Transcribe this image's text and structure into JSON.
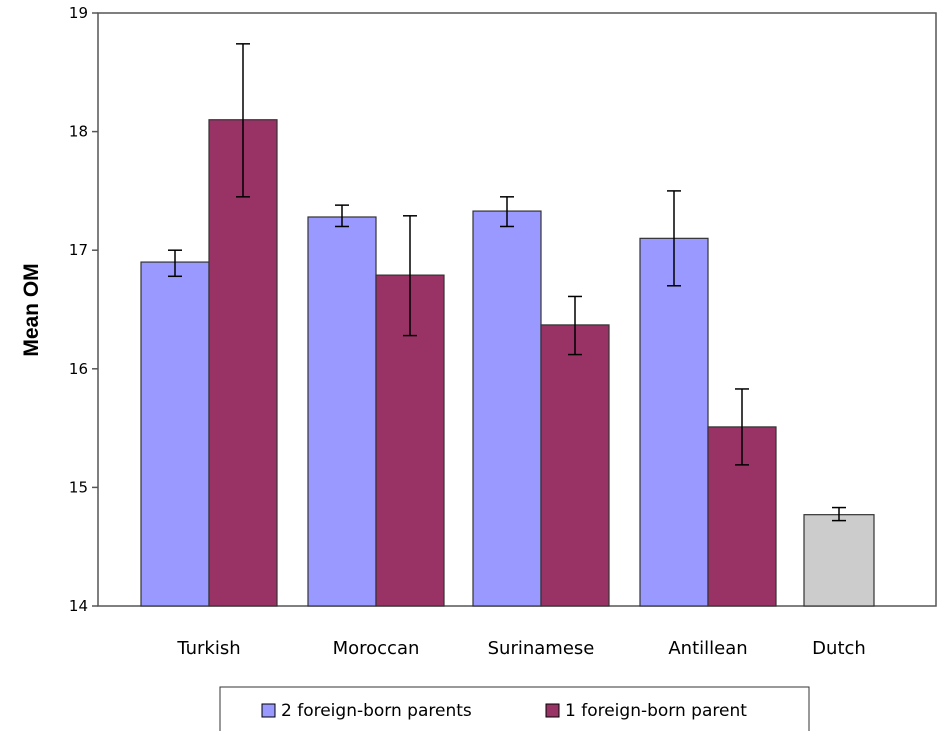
{
  "chart_data": {
    "type": "bar",
    "ylabel": "Mean OM",
    "xlabel": "",
    "ylim": [
      14,
      19
    ],
    "yticks": [
      14,
      15,
      16,
      17,
      18,
      19
    ],
    "categories": [
      "Turkish",
      "Moroccan",
      "Surinamese",
      "Antillean",
      "Dutch"
    ],
    "series": [
      {
        "name": "2 foreign-born parents",
        "color": "#9999ff",
        "values": [
          16.9,
          17.28,
          17.33,
          17.1,
          null
        ],
        "error_low": [
          16.78,
          17.2,
          17.2,
          16.7,
          null
        ],
        "error_high": [
          17.0,
          17.38,
          17.45,
          17.5,
          null
        ]
      },
      {
        "name": "1 foreign-born parent",
        "color": "#993366",
        "values": [
          18.1,
          16.79,
          16.37,
          15.51,
          null
        ],
        "error_low": [
          17.45,
          16.28,
          16.12,
          15.19,
          null
        ],
        "error_high": [
          18.74,
          17.29,
          16.61,
          15.83,
          null
        ]
      }
    ],
    "reference": {
      "category": "Dutch",
      "color": "#cccccc",
      "value": 14.77,
      "error_low": 14.72,
      "error_high": 14.83
    },
    "grid": false,
    "legend": "bottom-center"
  }
}
